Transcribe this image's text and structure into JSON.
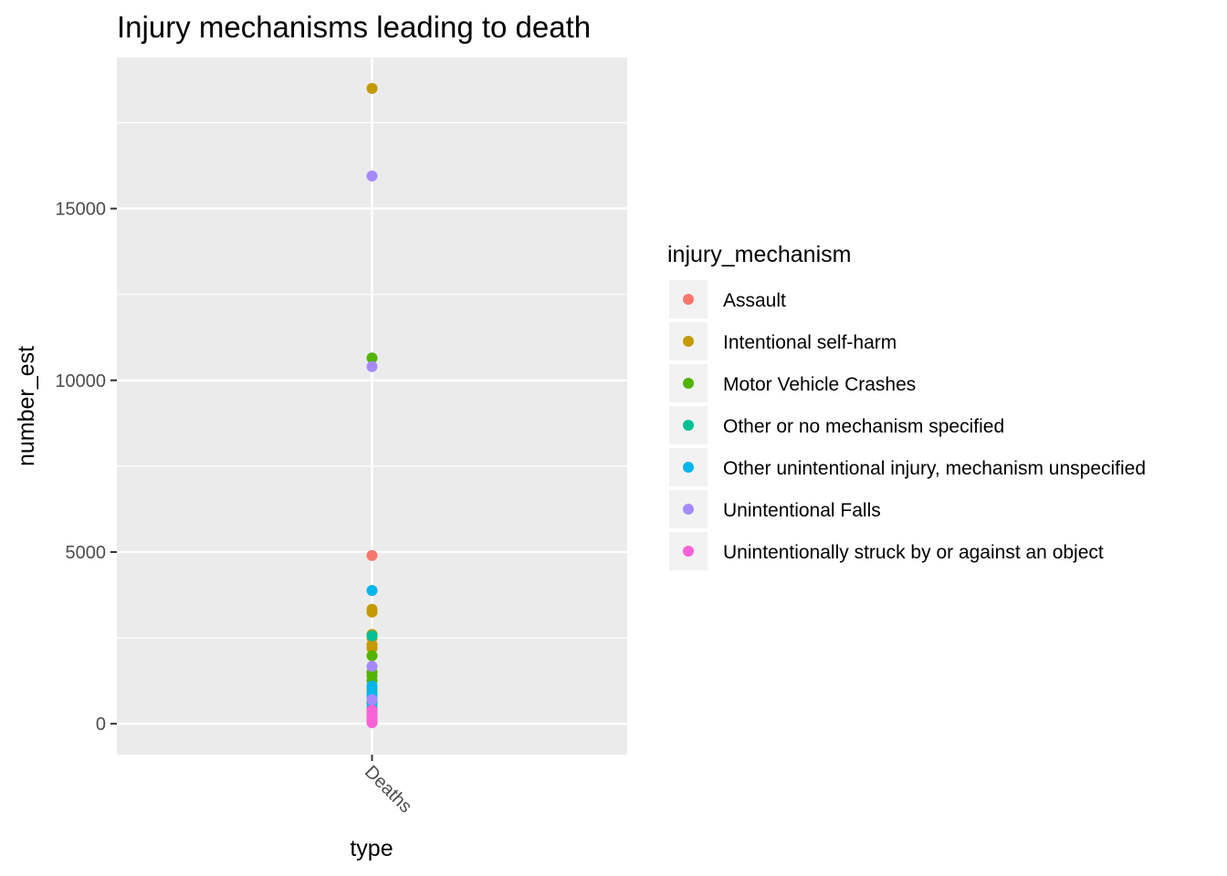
{
  "chart_data": {
    "type": "scatter",
    "title": "Injury mechanisms leading to death",
    "xlabel": "type",
    "ylabel": "number_est",
    "categories": [
      "Deaths"
    ],
    "y_ticks": [
      0,
      5000,
      10000,
      15000
    ],
    "y_tick_labels": [
      "0",
      "5000",
      "10000",
      "15000"
    ],
    "ylim": [
      -900,
      19400
    ],
    "grid": true,
    "panel_background": "#ebebeb",
    "legend_position": "right",
    "legend_title": "injury_mechanism",
    "series": [
      {
        "name": "Assault",
        "color": "#f8766d",
        "x": [
          "Deaths",
          "Deaths",
          "Deaths",
          "Deaths"
        ],
        "values": [
          4900,
          400,
          250,
          100
        ]
      },
      {
        "name": "Intentional self-harm",
        "color": "#c49a00",
        "x": [
          "Deaths",
          "Deaths",
          "Deaths",
          "Deaths",
          "Deaths",
          "Deaths",
          "Deaths",
          "Deaths"
        ],
        "values": [
          18500,
          3330,
          3250,
          2600,
          2500,
          2300,
          2200,
          1000
        ]
      },
      {
        "name": "Motor Vehicle Crashes",
        "color": "#53b400",
        "x": [
          "Deaths",
          "Deaths",
          "Deaths",
          "Deaths",
          "Deaths",
          "Deaths"
        ],
        "values": [
          10650,
          1980,
          1500,
          1400,
          1250,
          700
        ]
      },
      {
        "name": "Other or no mechanism specified",
        "color": "#00c094",
        "x": [
          "Deaths",
          "Deaths",
          "Deaths",
          "Deaths",
          "Deaths"
        ],
        "values": [
          2560,
          1050,
          600,
          350,
          150
        ]
      },
      {
        "name": "Other unintentional injury, mechanism unspecified",
        "color": "#00b6eb",
        "x": [
          "Deaths",
          "Deaths",
          "Deaths",
          "Deaths",
          "Deaths",
          "Deaths"
        ],
        "values": [
          3880,
          1100,
          900,
          800,
          500,
          300
        ]
      },
      {
        "name": "Unintentional Falls",
        "color": "#a58aff",
        "x": [
          "Deaths",
          "Deaths",
          "Deaths",
          "Deaths",
          "Deaths"
        ],
        "values": [
          15950,
          10400,
          1670,
          700,
          200
        ]
      },
      {
        "name": "Unintentionally struck by or against an object",
        "color": "#fb61d7",
        "x": [
          "Deaths",
          "Deaths",
          "Deaths",
          "Deaths",
          "Deaths"
        ],
        "values": [
          400,
          300,
          200,
          100,
          30
        ]
      }
    ]
  }
}
